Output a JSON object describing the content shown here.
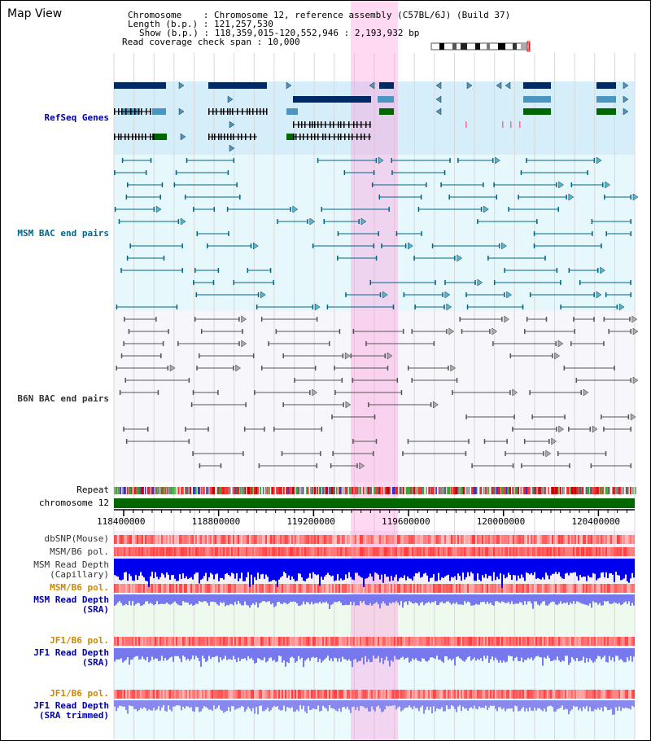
{
  "header": {
    "title": "Map View",
    "chromosome_key": "Chromosome    ",
    "chromosome_value": "Chromosome 12, reference assembly (C57BL/6J) (Build 37)",
    "length_key": "Length (b.p.)",
    "length_value": "121,257,530",
    "show_key": "Show (b.p.)",
    "show_value": "118,359,015-120,552,946 : 2,193,932 bp",
    "coverage_key": "Read coverage check span",
    "coverage_value": "10,000"
  },
  "tracks": {
    "refseq": "RefSeq Genes",
    "msm_bac": "MSM BAC end pairs",
    "b6n_bac": "B6N BAC end pairs",
    "repeat": "Repeat",
    "chromosome": "chromosome 12",
    "dbsnp": "dbSNP(Mouse)",
    "msm_b6_pol_1": "MSM/B6 pol.",
    "msm_depth_cap_1": "MSM Read Depth",
    "msm_depth_cap_2": "(Capillary)",
    "msm_b6_pol_2": "MSM/B6 pol.",
    "msm_depth_sra_1": "MSM Read Depth",
    "msm_depth_sra_2": "(SRA)",
    "jf1_b6_pol_1": "JF1/B6 pol.",
    "jf1_depth_sra_1": "JF1 Read Depth",
    "jf1_depth_sra_2": "(SRA)",
    "jf1_b6_pol_2": "JF1/B6 pol.",
    "jf1_depth_trim_1": "JF1 Read Depth",
    "jf1_depth_trim_2": "(SRA trimmed)"
  },
  "axis": {
    "ticks": [
      "118400000",
      "118800000",
      "119200000",
      "119600000",
      "120000000",
      "120400000"
    ],
    "tick_values": [
      118400000,
      118800000,
      119200000,
      119600000,
      120000000,
      120400000
    ]
  },
  "colors": {
    "refseq_label": "#000099",
    "msm_label": "#006688",
    "b6n_label": "#333333",
    "pol_label": "#cc8800",
    "depth_label": "#0000aa",
    "highlight": "#ff99dd",
    "chrom_bar": "#006600"
  }
}
